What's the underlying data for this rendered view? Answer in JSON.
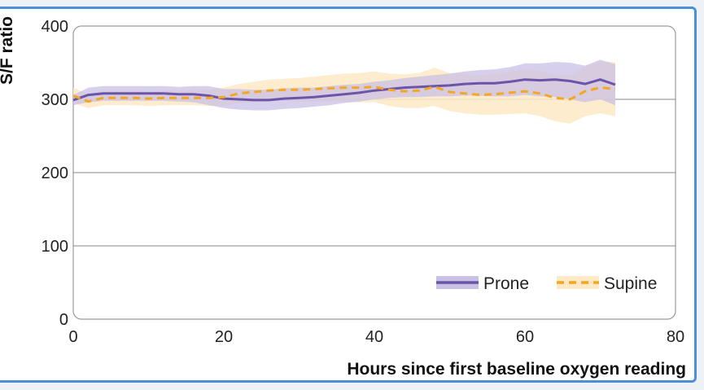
{
  "chart_data": {
    "type": "line",
    "xlabel": "Hours since first baseline oxygen reading",
    "ylabel": "S/F ratio",
    "xlim": [
      0,
      80
    ],
    "ylim": [
      0,
      400
    ],
    "x_ticks": [
      "0",
      "20",
      "40",
      "60",
      "80"
    ],
    "y_ticks": [
      "0",
      "100",
      "200",
      "300",
      "400"
    ],
    "grid": "horizontal",
    "legend_position": "bottom-right",
    "series": [
      {
        "name": "Prone",
        "color": "#6a55a8",
        "band_color": "#c9c0e6",
        "style": "solid",
        "x": [
          0,
          2,
          4,
          6,
          8,
          10,
          12,
          14,
          16,
          18,
          20,
          22,
          24,
          26,
          28,
          30,
          32,
          34,
          36,
          38,
          40,
          42,
          44,
          46,
          48,
          50,
          52,
          54,
          56,
          58,
          60,
          62,
          64,
          66,
          68,
          70,
          72
        ],
        "y": [
          299,
          306,
          308,
          308,
          308,
          308,
          308,
          307,
          307,
          305,
          301,
          300,
          299,
          299,
          301,
          302,
          303,
          305,
          307,
          309,
          312,
          314,
          316,
          317,
          318,
          319,
          321,
          322,
          322,
          324,
          327,
          326,
          327,
          325,
          321,
          327,
          320
        ],
        "lower": [
          292,
          296,
          298,
          298,
          298,
          298,
          298,
          297,
          296,
          292,
          288,
          286,
          285,
          285,
          287,
          288,
          290,
          292,
          295,
          297,
          300,
          302,
          303,
          303,
          304,
          304,
          305,
          305,
          304,
          304,
          306,
          304,
          303,
          300,
          296,
          300,
          292
        ],
        "upper": [
          306,
          316,
          318,
          318,
          318,
          318,
          318,
          317,
          318,
          318,
          314,
          314,
          313,
          313,
          315,
          316,
          316,
          318,
          320,
          321,
          324,
          326,
          329,
          331,
          333,
          335,
          338,
          340,
          341,
          344,
          349,
          349,
          351,
          350,
          346,
          354,
          348
        ]
      },
      {
        "name": "Supine",
        "color": "#f5a623",
        "band_color": "#fde9c4",
        "style": "dashed",
        "x": [
          0,
          2,
          4,
          6,
          8,
          10,
          12,
          14,
          16,
          18,
          20,
          22,
          24,
          26,
          28,
          30,
          32,
          34,
          36,
          38,
          40,
          42,
          44,
          46,
          48,
          50,
          52,
          54,
          56,
          58,
          60,
          62,
          64,
          66,
          68,
          70,
          72
        ],
        "y": [
          305,
          297,
          302,
          302,
          302,
          301,
          302,
          302,
          302,
          302,
          303,
          308,
          310,
          312,
          313,
          313,
          314,
          315,
          316,
          316,
          317,
          313,
          311,
          312,
          317,
          310,
          308,
          306,
          307,
          309,
          311,
          308,
          302,
          300,
          311,
          316,
          314
        ],
        "lower": [
          295,
          288,
          292,
          292,
          292,
          291,
          292,
          292,
          292,
          291,
          291,
          295,
          296,
          297,
          298,
          297,
          297,
          297,
          297,
          296,
          296,
          291,
          288,
          288,
          291,
          284,
          281,
          279,
          279,
          280,
          281,
          277,
          270,
          267,
          277,
          281,
          277
        ],
        "upper": [
          316,
          307,
          312,
          312,
          312,
          311,
          312,
          312,
          312,
          313,
          316,
          321,
          324,
          327,
          328,
          329,
          331,
          333,
          335,
          336,
          338,
          335,
          334,
          336,
          343,
          336,
          335,
          333,
          335,
          338,
          341,
          339,
          334,
          333,
          345,
          351,
          351
        ]
      }
    ]
  }
}
